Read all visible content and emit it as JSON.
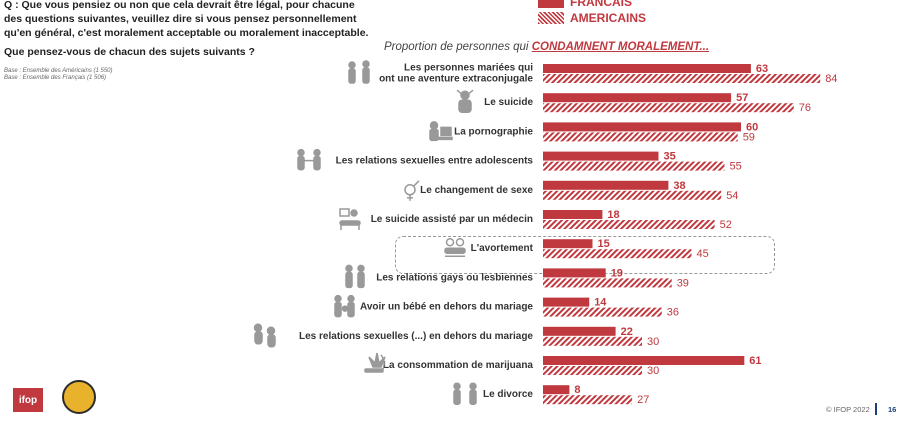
{
  "question": {
    "text": "Q : Que vous pensiez ou non que cela devrait être légal, pour chacune des questions suivantes, veuillez dire si vous pensez personnellement qu'en général, c'est moralement acceptable ou moralement inacceptable.",
    "sub_question": "Que pensez-vous de chacun des sujets suivants ?"
  },
  "base": {
    "line1": "Base : Ensemble des Américains (1 550)",
    "line2": "Base : Ensemble des Français (1 506)"
  },
  "legend": {
    "french": "FRANCAIS",
    "american": "AMERICAINS"
  },
  "subtitle": {
    "prefix": "Proportion de personnes qui ",
    "emphasis": "CONDAMNENT MORALEMENT..."
  },
  "footer": {
    "copyright": "© IFOP 2022",
    "page": "16"
  },
  "logo": {
    "text": "ifop"
  },
  "colors": {
    "accent": "#c0393f"
  },
  "chart_data": {
    "type": "bar",
    "orientation": "horizontal",
    "categories": [
      "Les personnes mariées qui ont une aventure extraconjugale",
      "Le suicide",
      "La pornographie",
      "Les relations sexuelles entre adolescents",
      "Le changement de sexe",
      "Le suicide assisté par un médecin",
      "L'avortement",
      "Les relations gays ou lesbiennes",
      "Avoir un bébé en dehors du mariage",
      "Les relations sexuelles (...) en dehors du mariage",
      "La consommation de marijuana",
      "Le divorce"
    ],
    "category_lines": [
      [
        "Les personnes mariées qui",
        "ont une aventure extraconjugale"
      ],
      [
        "Le suicide"
      ],
      [
        "La pornographie"
      ],
      [
        "Les relations sexuelles entre adolescents"
      ],
      [
        "Le changement de sexe"
      ],
      [
        "Le suicide assisté par un médecin"
      ],
      [
        "L'avortement"
      ],
      [
        "Les relations gays ou lesbiennes"
      ],
      [
        "Avoir un bébé en dehors du mariage"
      ],
      [
        "Les relations sexuelles (...) en dehors du mariage"
      ],
      [
        "La consommation de marijuana"
      ],
      [
        "Le divorce"
      ]
    ],
    "icons": [
      "couple-icon",
      "distress-icon",
      "computer-user-icon",
      "teen-couple-icon",
      "gender-symbol-icon",
      "medical-bed-icon",
      "abortion-icon",
      "gay-couple-icon",
      "parents-baby-icon",
      "embrace-couple-icon",
      "joint-icon",
      "separation-icon"
    ],
    "series": [
      {
        "name": "FRANCAIS",
        "style": "solid",
        "values": [
          63,
          57,
          60,
          35,
          38,
          18,
          15,
          19,
          14,
          22,
          61,
          8
        ]
      },
      {
        "name": "AMERICAINS",
        "style": "hatched",
        "values": [
          84,
          76,
          59,
          55,
          54,
          52,
          45,
          39,
          36,
          30,
          30,
          27
        ]
      }
    ],
    "xlim": [
      0,
      100
    ],
    "highlighted_category": "L'avortement",
    "legend_position": "top"
  }
}
